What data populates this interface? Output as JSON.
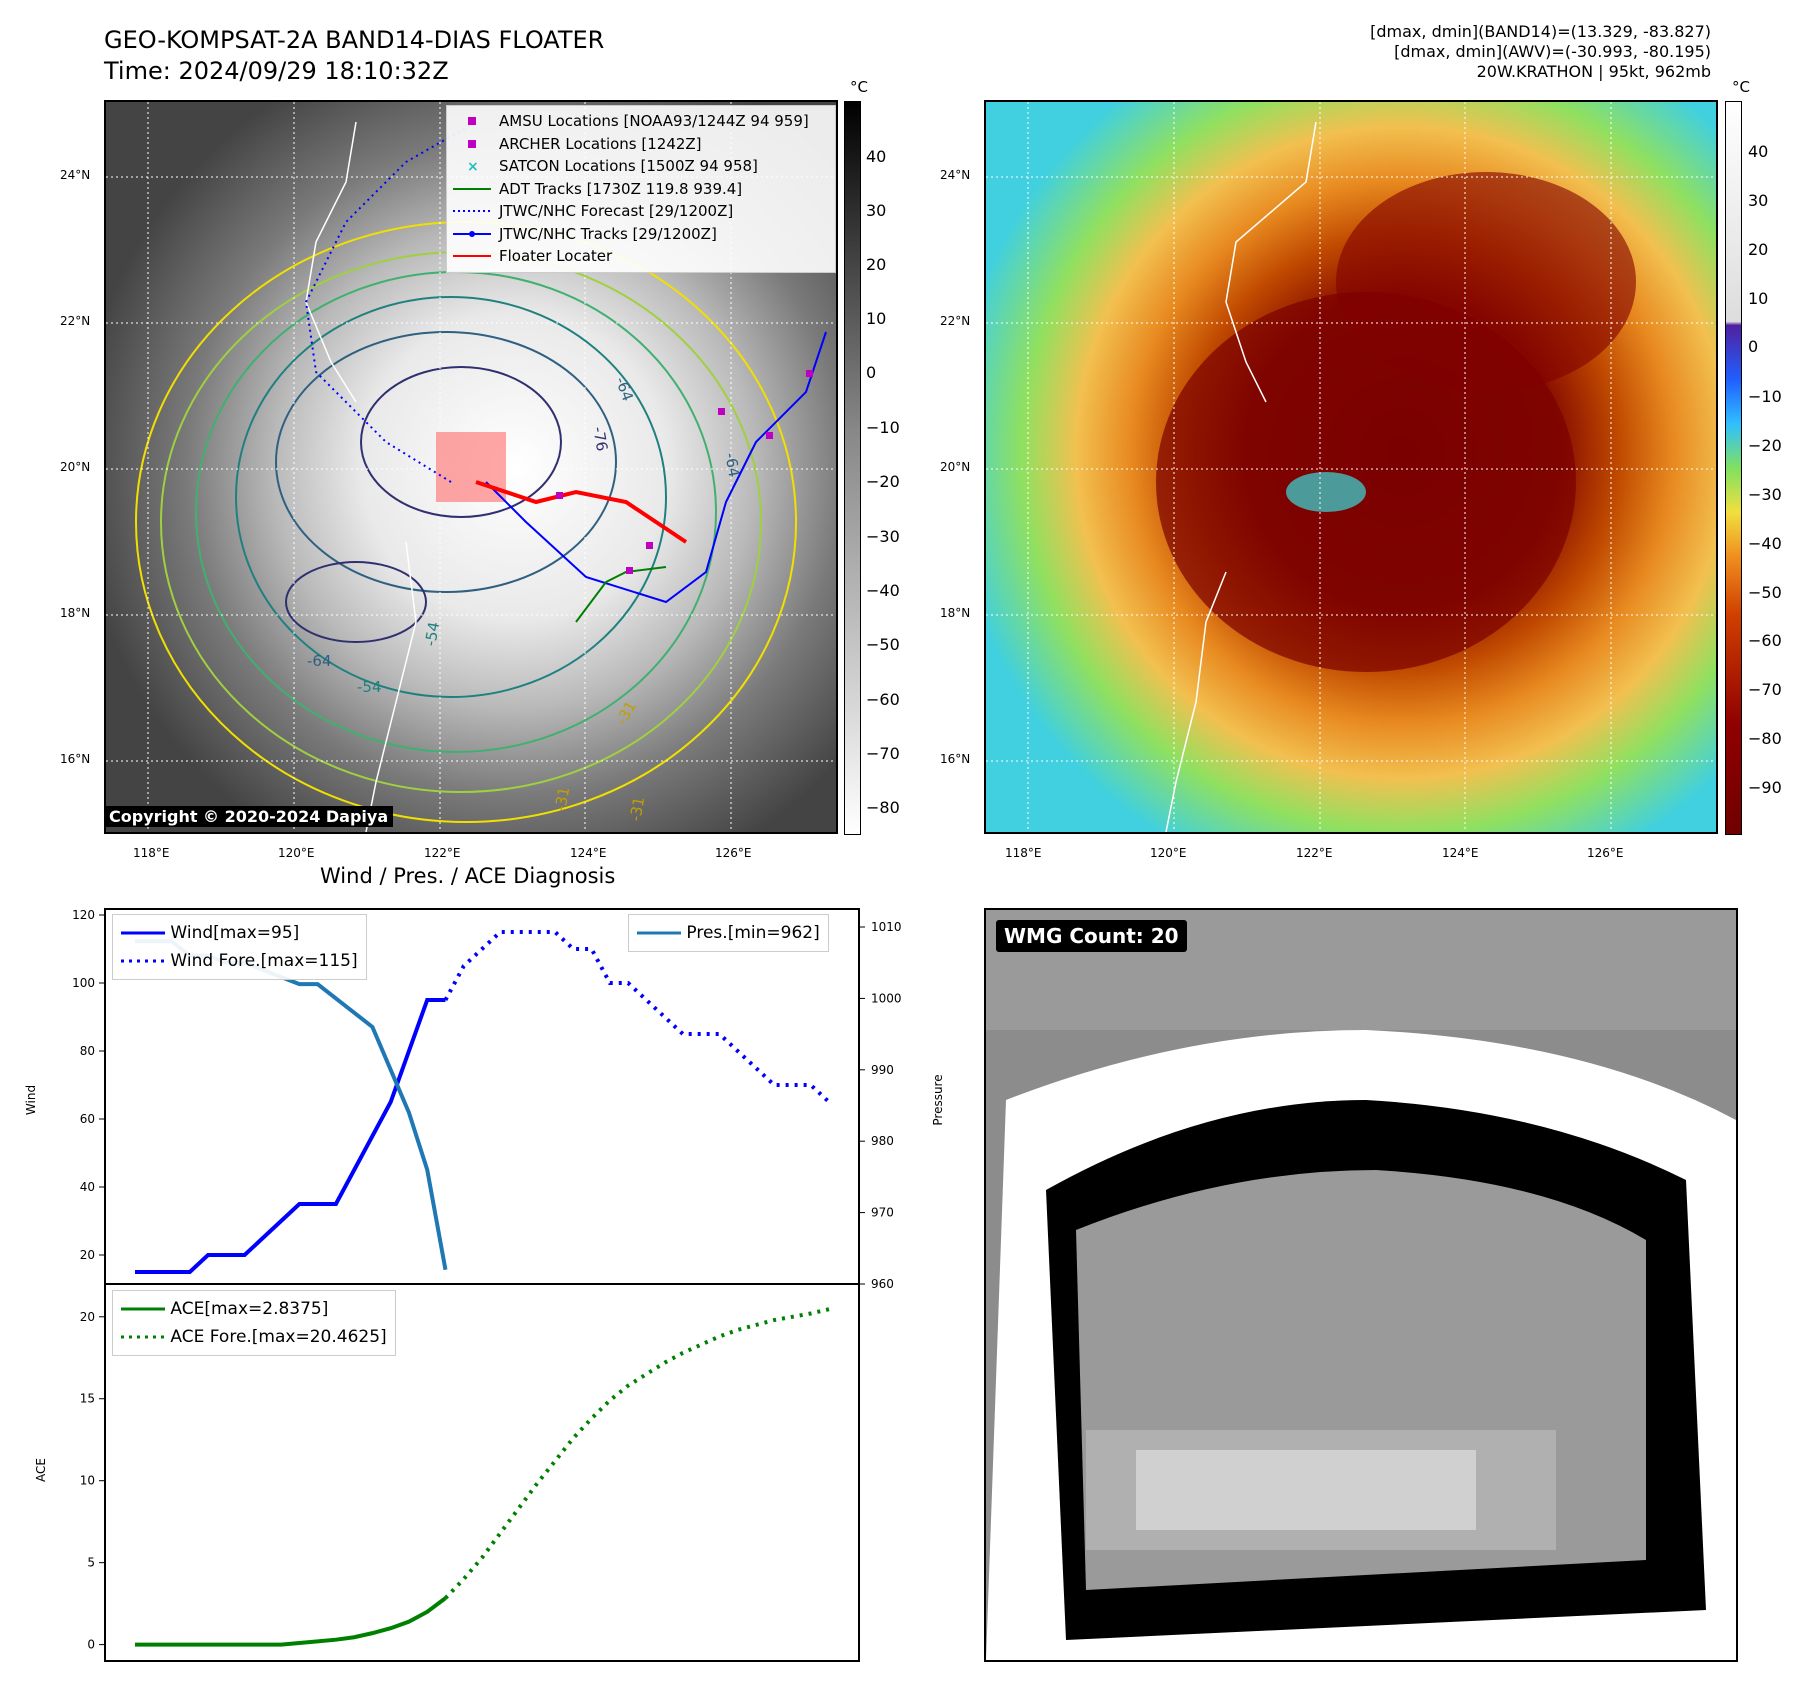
{
  "header": {
    "title_line1": "GEO-KOMPSAT-2A BAND14-DIAS FLOATER",
    "title_line2": "Time: 2024/09/29 18:10:32Z",
    "info_line1": "[dmax, dmin](BAND14)=(13.329, -83.827)",
    "info_line2": "[dmax, dmin](AWV)=(-30.993, -80.195)",
    "info_line3": "20W.KRATHON | 95kt, 962mb"
  },
  "map": {
    "lon_labels": [
      "118°E",
      "120°E",
      "122°E",
      "124°E",
      "126°E"
    ],
    "lat_labels": [
      "24°N",
      "22°N",
      "20°N",
      "18°N",
      "16°N"
    ],
    "copyright": "Copyright © 2020-2024 Dapiya",
    "contour_labels": [
      "-64",
      "-76",
      "-64",
      "-54",
      "-64",
      "-54",
      "-31",
      "-31",
      "-31"
    ],
    "legend": [
      {
        "label": "AMSU Locations [NOAA93/1244Z 94 959]",
        "color": "#c000c0",
        "kind": "square"
      },
      {
        "label": "ARCHER Locations [1242Z]",
        "color": "#c000c0",
        "kind": "square"
      },
      {
        "label": "SATCON Locations [1500Z 94 958]",
        "color": "#20c0c0",
        "kind": "x"
      },
      {
        "label": "ADT Tracks [1730Z 119.8 939.4]",
        "color": "#008000",
        "kind": "line"
      },
      {
        "label": "JTWC/NHC Forecast [29/1200Z]",
        "color": "#0000ff",
        "kind": "dotted"
      },
      {
        "label": "JTWC/NHC Tracks [29/1200Z]",
        "color": "#0000ff",
        "kind": "linedot"
      },
      {
        "label": "Floater Locater",
        "color": "#ff0000",
        "kind": "line"
      }
    ]
  },
  "colorbar_left": {
    "unit": "°C",
    "ticks": [
      "40",
      "30",
      "20",
      "10",
      "0",
      "−10",
      "−20",
      "−30",
      "−40",
      "−50",
      "−60",
      "−70",
      "−80"
    ]
  },
  "colorbar_right": {
    "unit": "°C",
    "ticks": [
      "40",
      "30",
      "20",
      "10",
      "0",
      "−10",
      "−20",
      "−30",
      "−40",
      "−50",
      "−60",
      "−70",
      "−80",
      "−90"
    ]
  },
  "diagnosis": {
    "title": "Wind / Pres. / ACE Diagnosis",
    "wind_ylabel": "Wind",
    "pres_ylabel": "Pressure",
    "ace_ylabel": "ACE",
    "wind_ticks": [
      "120",
      "100",
      "80",
      "60",
      "40",
      "20"
    ],
    "pres_ticks": [
      "1010",
      "1000",
      "990",
      "980",
      "970",
      "960"
    ],
    "ace_ticks": [
      "20",
      "15",
      "10",
      "5",
      "0"
    ],
    "legend_wind": "Wind[max=95]",
    "legend_wind_fore": "Wind Fore.[max=115]",
    "legend_pres": "Pres.[min=962]",
    "legend_ace": "ACE[max=2.8375]",
    "legend_ace_fore": "ACE Fore.[max=20.4625]"
  },
  "wmg": {
    "label": "WMG Count: 20"
  },
  "chart_data": [
    {
      "type": "line",
      "title": "Wind / Pres. / ACE Diagnosis",
      "ylabel": "Wind",
      "ylim": [
        15,
        120
      ],
      "series": [
        {
          "name": "Wind[max=95]",
          "color": "#0000ff",
          "style": "solid",
          "x": [
            0,
            1,
            2,
            3,
            4,
            5,
            6,
            7,
            8,
            9,
            10,
            11,
            12,
            13,
            14,
            15,
            16,
            17
          ],
          "values": [
            15,
            15,
            15,
            15,
            20,
            20,
            20,
            25,
            30,
            35,
            35,
            35,
            45,
            55,
            65,
            80,
            95,
            95
          ]
        },
        {
          "name": "Wind Fore.[max=115]",
          "color": "#0000ff",
          "style": "dotted",
          "x": [
            17,
            18,
            19,
            20,
            21,
            22,
            23,
            24,
            25,
            26,
            27,
            28,
            29,
            30,
            31,
            32,
            33,
            34,
            35,
            36,
            37,
            38
          ],
          "values": [
            95,
            105,
            110,
            115,
            115,
            115,
            115,
            110,
            110,
            100,
            100,
            95,
            90,
            85,
            85,
            85,
            80,
            75,
            70,
            70,
            70,
            65
          ]
        }
      ]
    },
    {
      "type": "line",
      "ylabel": "Pressure",
      "ylim": [
        960,
        1010
      ],
      "series": [
        {
          "name": "Pres.[min=962]",
          "color": "#1f77b4",
          "style": "solid",
          "x": [
            0,
            1,
            2,
            3,
            4,
            5,
            6,
            7,
            8,
            9,
            10,
            11,
            12,
            13,
            14,
            15,
            16,
            17
          ],
          "values": [
            1008,
            1008,
            1008,
            1006,
            1006,
            1005,
            1005,
            1004,
            1003,
            1002,
            1002,
            1000,
            998,
            996,
            990,
            984,
            976,
            962
          ]
        }
      ]
    },
    {
      "type": "line",
      "ylabel": "ACE",
      "ylim": [
        -1,
        22
      ],
      "series": [
        {
          "name": "ACE[max=2.8375]",
          "color": "#008000",
          "style": "solid",
          "x": [
            0,
            1,
            2,
            3,
            4,
            5,
            6,
            7,
            8,
            9,
            10,
            11,
            12,
            13,
            14,
            15,
            16,
            17
          ],
          "values": [
            0,
            0,
            0,
            0,
            0,
            0,
            0,
            0,
            0,
            0.1,
            0.2,
            0.3,
            0.45,
            0.7,
            1.0,
            1.4,
            2.0,
            2.8375
          ]
        },
        {
          "name": "ACE Fore.[max=20.4625]",
          "color": "#008000",
          "style": "dotted",
          "x": [
            17,
            18,
            19,
            20,
            21,
            22,
            23,
            24,
            25,
            26,
            27,
            28,
            29,
            30,
            31,
            32,
            33,
            34,
            35,
            36,
            37,
            38
          ],
          "values": [
            2.8375,
            4.0,
            5.3,
            6.8,
            8.3,
            9.8,
            11.2,
            12.6,
            13.8,
            14.9,
            15.8,
            16.5,
            17.2,
            17.8,
            18.3,
            18.8,
            19.2,
            19.5,
            19.8,
            20.0,
            20.2,
            20.4625
          ]
        }
      ]
    }
  ]
}
